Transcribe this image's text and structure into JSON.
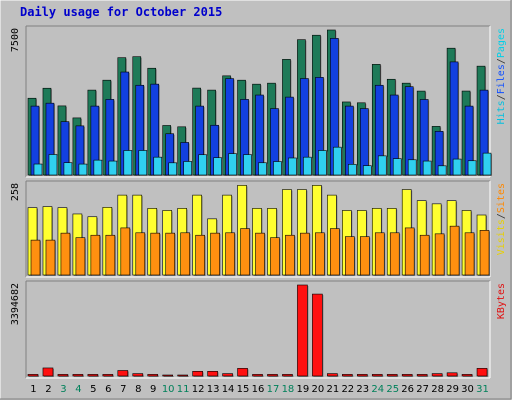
{
  "chart_data": {
    "type": "bar",
    "title": "Daily usage for October 2015",
    "categories": [
      "1",
      "2",
      "3",
      "4",
      "5",
      "6",
      "7",
      "8",
      "9",
      "10",
      "11",
      "12",
      "13",
      "14",
      "15",
      "16",
      "17",
      "18",
      "19",
      "20",
      "21",
      "22",
      "23",
      "24",
      "25",
      "26",
      "27",
      "28",
      "29",
      "30",
      "31"
    ],
    "weekend_days": [
      "3",
      "4",
      "10",
      "11",
      "17",
      "18",
      "24",
      "25",
      "31"
    ],
    "panels": [
      {
        "id": "hits",
        "ymax": 7500,
        "max_label": "7500",
        "right_labels": [
          {
            "text": "Hits",
            "color": "#00c0e0"
          },
          {
            "text": "/",
            "color": "#333333"
          },
          {
            "text": "Files",
            "color": "#1050ff"
          },
          {
            "text": "/",
            "color": "#333333"
          },
          {
            "text": "Pages",
            "color": "#00d0e8"
          }
        ],
        "series": [
          {
            "name": "Hits",
            "color": "#1e7a58",
            "values": [
              3971,
              4488,
              3574,
              2953,
              4391,
              4904,
              6069,
              6120,
              5523,
              2561,
              2493,
              4495,
              4391,
              5129,
              4904,
              4698,
              4750,
              5981,
              7000,
              7230,
              7500,
              3778,
              3735,
              5723,
              4952,
              4750,
              4340,
              2515,
              6559,
              4342,
              5630
            ]
          },
          {
            "name": "Files",
            "color": "#1240e0",
            "values": [
              3564,
              3715,
              2760,
              2541,
              3564,
              3910,
              5326,
              4642,
              4700,
              2134,
              1682,
              3564,
              2573,
              4987,
              3910,
              4136,
              3436,
              4029,
              4990,
              5050,
              7066,
              3564,
              3436,
              4642,
              4136,
              4568,
              3906,
              2260,
              5850,
              3564,
              4390
            ]
          },
          {
            "name": "Pages",
            "color": "#30d0f0",
            "values": [
              567,
              1060,
              637,
              565,
              769,
              721,
              1268,
              1268,
              922,
              630,
              699,
              1049,
              897,
              1104,
              1055,
              633,
              695,
              880,
              922,
              1267,
              1439,
              550,
              481,
              990,
              845,
              787,
              721,
              475,
              824,
              737,
              1131
            ]
          }
        ]
      },
      {
        "id": "visits",
        "ymax": 258,
        "max_label": "258",
        "right_labels": [
          {
            "text": "Visits",
            "color": "#e8d000"
          },
          {
            "text": "/",
            "color": "#333333"
          },
          {
            "text": "Sites",
            "color": "#ff8800"
          }
        ],
        "series": [
          {
            "name": "Visits",
            "color": "#ffff30",
            "values": [
              193,
              196,
              193,
              175,
              167,
              194,
              229,
              229,
              191,
              185,
              191,
              229,
              161,
              229,
              257,
              191,
              191,
              245,
              245,
              257,
              229,
              185,
              185,
              191,
              191,
              245,
              213,
              204,
              213,
              185,
              172
            ]
          },
          {
            "name": "Sites",
            "color": "#ff9010",
            "values": [
              100,
              100,
              120,
              107,
              114,
              114,
              135,
              121,
              120,
              120,
              121,
              114,
              120,
              121,
              133,
              120,
              107,
              114,
              120,
              121,
              133,
              110,
              110,
              121,
              121,
              135,
              114,
              118,
              140,
              121,
              128
            ]
          }
        ]
      },
      {
        "id": "kbytes",
        "ymax": 3394682,
        "max_label": "3394682",
        "right_labels": [
          {
            "text": "KBytes",
            "color": "#e01010"
          }
        ],
        "series": [
          {
            "name": "KBytes",
            "color": "#ff1010",
            "values": [
              60000,
              300000,
              60000,
              60000,
              60000,
              60000,
              205000,
              90000,
              60000,
              30000,
              30000,
              175000,
              175000,
              90000,
              285000,
              60000,
              60000,
              60000,
              3394682,
              3056000,
              90000,
              60000,
              60000,
              60000,
              60000,
              60000,
              60000,
              90000,
              120000,
              60000,
              285000
            ]
          }
        ]
      }
    ],
    "xlabel": "",
    "ylabel": "",
    "grid": false,
    "legend": "right-vertical"
  }
}
